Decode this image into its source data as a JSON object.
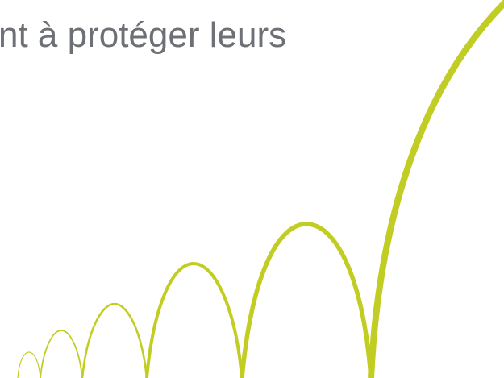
{
  "slide": {
    "heading": "nt à protéger leurs"
  },
  "decoration": {
    "icon": "bouncing-arcs-graphic",
    "accent_color": "#c2cd23",
    "text_color": "#6d7074"
  }
}
